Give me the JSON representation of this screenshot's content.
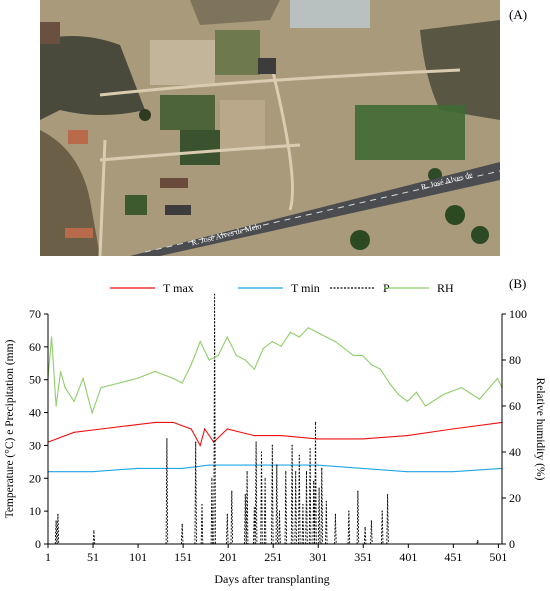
{
  "panel_a": {
    "label": "(A)",
    "road_labels": [
      "R. José Alves de",
      "R. José Alves de Melo"
    ],
    "colors": {
      "ground": "#a89a7a",
      "vegetation": "#3d5a2f",
      "road": "#4a4c50",
      "roof": "#b86a4a"
    }
  },
  "panel_b": {
    "label": "(B)"
  },
  "chart_data": {
    "type": "line",
    "xlabel": "Days after transplanting",
    "ylabel": "Temperature (°C) e Precipitation (mm)",
    "y2label": "Relative humidity (%)",
    "xlim": [
      1,
      505
    ],
    "ylim": [
      0,
      70
    ],
    "y2lim": [
      0,
      100
    ],
    "xticks": [
      1,
      51,
      101,
      151,
      201,
      251,
      301,
      351,
      401,
      451,
      501
    ],
    "yticks": [
      0,
      10,
      20,
      30,
      40,
      50,
      60,
      70
    ],
    "y2ticks": [
      0,
      20,
      40,
      60,
      80,
      100
    ],
    "legend_position": "top",
    "series": [
      {
        "name": "T max",
        "axis": "left",
        "color": "#ee1111",
        "style": "solid",
        "x": [
          1,
          30,
          60,
          90,
          120,
          140,
          160,
          170,
          175,
          185,
          200,
          230,
          260,
          300,
          350,
          400,
          450,
          505
        ],
        "y": [
          31,
          34,
          35,
          36,
          37,
          37,
          35,
          30,
          35,
          31,
          35,
          33,
          33,
          32,
          32,
          33,
          35,
          37
        ]
      },
      {
        "name": "T min",
        "axis": "left",
        "color": "#1ea7e6",
        "style": "solid",
        "x": [
          1,
          50,
          100,
          150,
          180,
          220,
          250,
          300,
          350,
          400,
          450,
          505
        ],
        "y": [
          22,
          22,
          23,
          23,
          24,
          24,
          24,
          24,
          23,
          22,
          22,
          23
        ]
      },
      {
        "name": "P",
        "axis": "left",
        "color": "#000000",
        "style": "dashed",
        "kind": "pulse",
        "x": [
          10,
          12,
          52,
          133,
          150,
          165,
          172,
          183,
          186,
          200,
          205,
          220,
          222,
          230,
          232,
          238,
          242,
          250,
          255,
          258,
          265,
          272,
          276,
          280,
          284,
          288,
          292,
          296,
          298,
          302,
          305,
          310,
          320,
          335,
          345,
          353,
          360,
          372,
          378,
          478
        ],
        "y": [
          7,
          9,
          4,
          32,
          6,
          31,
          12,
          20,
          76,
          9,
          16,
          15,
          22,
          11,
          31,
          28,
          20,
          30,
          24,
          10,
          22,
          30,
          22,
          27,
          12,
          22,
          29,
          19,
          37,
          17,
          23,
          13,
          9,
          10,
          16,
          5,
          7,
          10,
          15,
          1
        ]
      },
      {
        "name": "RH",
        "axis": "right",
        "color": "#8fce6a",
        "style": "solid",
        "x": [
          1,
          5,
          10,
          15,
          20,
          30,
          40,
          50,
          60,
          80,
          100,
          120,
          140,
          150,
          160,
          170,
          180,
          190,
          200,
          210,
          220,
          230,
          240,
          250,
          260,
          270,
          280,
          290,
          300,
          310,
          320,
          330,
          340,
          350,
          360,
          370,
          380,
          390,
          400,
          410,
          420,
          440,
          460,
          480,
          500,
          505
        ],
        "y": [
          72,
          90,
          60,
          75,
          68,
          62,
          72,
          57,
          68,
          70,
          72,
          75,
          72,
          70,
          78,
          88,
          80,
          82,
          90,
          82,
          80,
          76,
          85,
          88,
          86,
          92,
          90,
          94,
          92,
          90,
          88,
          85,
          82,
          82,
          78,
          76,
          70,
          65,
          62,
          66,
          60,
          65,
          68,
          63,
          72,
          68
        ]
      }
    ]
  }
}
